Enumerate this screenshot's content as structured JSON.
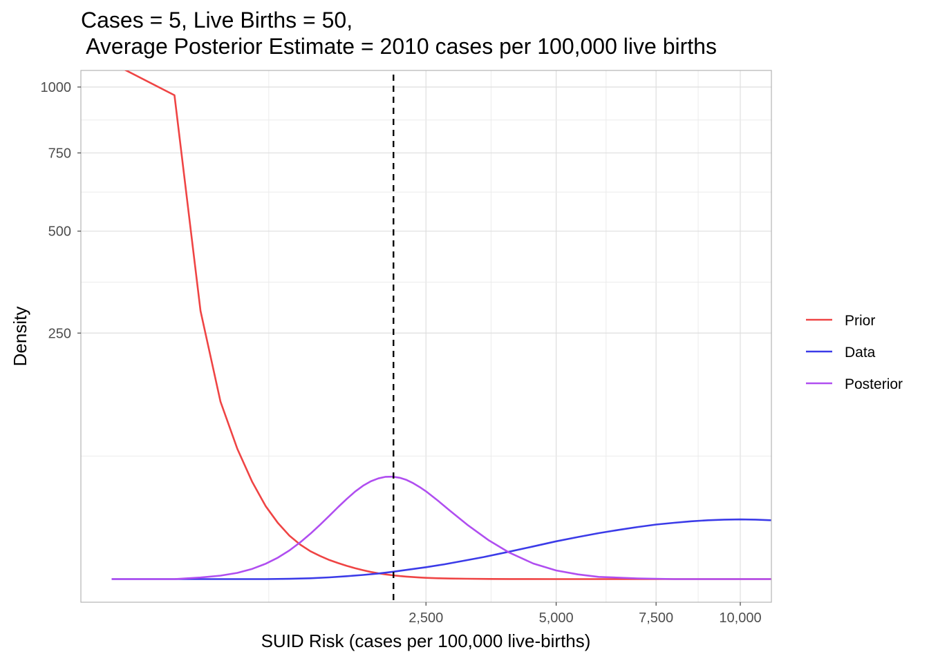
{
  "chart_data": {
    "type": "line",
    "title_lines": [
      "Cases = 5, Live Births = 50,",
      " Average Posterior Estimate = 2010 cases per 100,000 live births"
    ],
    "xlabel": "SUID Risk (cases per 100,000 live-births)",
    "ylabel": "Density",
    "x_scale": "sqrt",
    "y_scale": "sqrt",
    "xlim": [
      0,
      11000
    ],
    "ylim": [
      0,
      1100
    ],
    "x_ticks": [
      2500,
      5000,
      7500,
      10000
    ],
    "x_tick_labels": [
      "2,500",
      "5,000",
      "7,500",
      "10,000"
    ],
    "y_ticks": [
      250,
      500,
      750,
      1000
    ],
    "y_tick_labels": [
      "250",
      "500",
      "750",
      "1000"
    ],
    "grid": true,
    "legend_position": "right",
    "reference_line": {
      "x": 2010,
      "style": "dashed",
      "color": "#000000"
    },
    "series": [
      {
        "name": "Prior",
        "color": "#ef4444",
        "x": [
          0,
          100,
          200,
          300,
          400,
          500,
          600,
          700,
          800,
          900,
          1000,
          1100,
          1200,
          1300,
          1400,
          1500,
          1600,
          1700,
          1800,
          1900,
          2000,
          2100,
          2200,
          2300,
          2400,
          2500,
          2700,
          2900,
          3200,
          3600,
          4000,
          5000,
          6000,
          7000,
          8000,
          9000,
          10000,
          11000
        ],
        "y": [
          1100,
          967,
          297,
          130,
          70,
          39,
          22,
          13,
          7.8,
          4.9,
          3.2,
          2.2,
          1.5,
          1.05,
          0.72,
          0.49,
          0.33,
          0.21,
          0.14,
          0.09,
          0.059,
          0.038,
          0.025,
          0.016,
          0.01,
          0.0065,
          0.003,
          0.0012,
          0.0004,
          0.0001,
          2e-05,
          0,
          0,
          0,
          0,
          0,
          0,
          0
        ]
      },
      {
        "name": "Data",
        "color": "#3b3be8",
        "x": [
          0,
          100,
          200,
          300,
          400,
          500,
          600,
          800,
          1000,
          1200,
          1400,
          1600,
          1800,
          2000,
          2200,
          2500,
          2800,
          3100,
          3500,
          4000,
          4500,
          5000,
          5500,
          6000,
          6500,
          7000,
          7500,
          8000,
          8500,
          9000,
          9500,
          10000,
          10500,
          11000
        ],
        "y": [
          0,
          0,
          0,
          0,
          0,
          0,
          0,
          0.0003,
          0.003,
          0.012,
          0.034,
          0.07,
          0.13,
          0.22,
          0.35,
          0.58,
          0.9,
          1.33,
          2.0,
          3.1,
          4.4,
          5.9,
          7.3,
          8.7,
          10.0,
          11.2,
          12.3,
          13.1,
          13.8,
          14.3,
          14.6,
          14.7,
          14.6,
          14.3
        ]
      },
      {
        "name": "Posterior",
        "color": "#b04ef0",
        "x": [
          0,
          100,
          200,
          300,
          400,
          500,
          600,
          700,
          800,
          900,
          1000,
          1100,
          1200,
          1300,
          1400,
          1500,
          1600,
          1700,
          1800,
          1900,
          2000,
          2100,
          2200,
          2300,
          2400,
          2500,
          2700,
          2900,
          3200,
          3600,
          4000,
          4500,
          5000,
          5500,
          6000,
          7000,
          8000,
          9000,
          10000,
          11000
        ],
        "y": [
          0,
          0,
          0.01,
          0.05,
          0.16,
          0.43,
          0.97,
          1.9,
          3.4,
          5.6,
          8.5,
          12.2,
          16.6,
          21.5,
          26.6,
          31.6,
          36.0,
          39.5,
          41.9,
          43.2,
          43.3,
          42.4,
          40.6,
          38.0,
          35.0,
          31.8,
          25.2,
          19.2,
          12.2,
          6.2,
          2.9,
          1.0,
          0.31,
          0.09,
          0.02,
          0.002,
          0,
          0,
          0,
          0
        ]
      }
    ]
  }
}
